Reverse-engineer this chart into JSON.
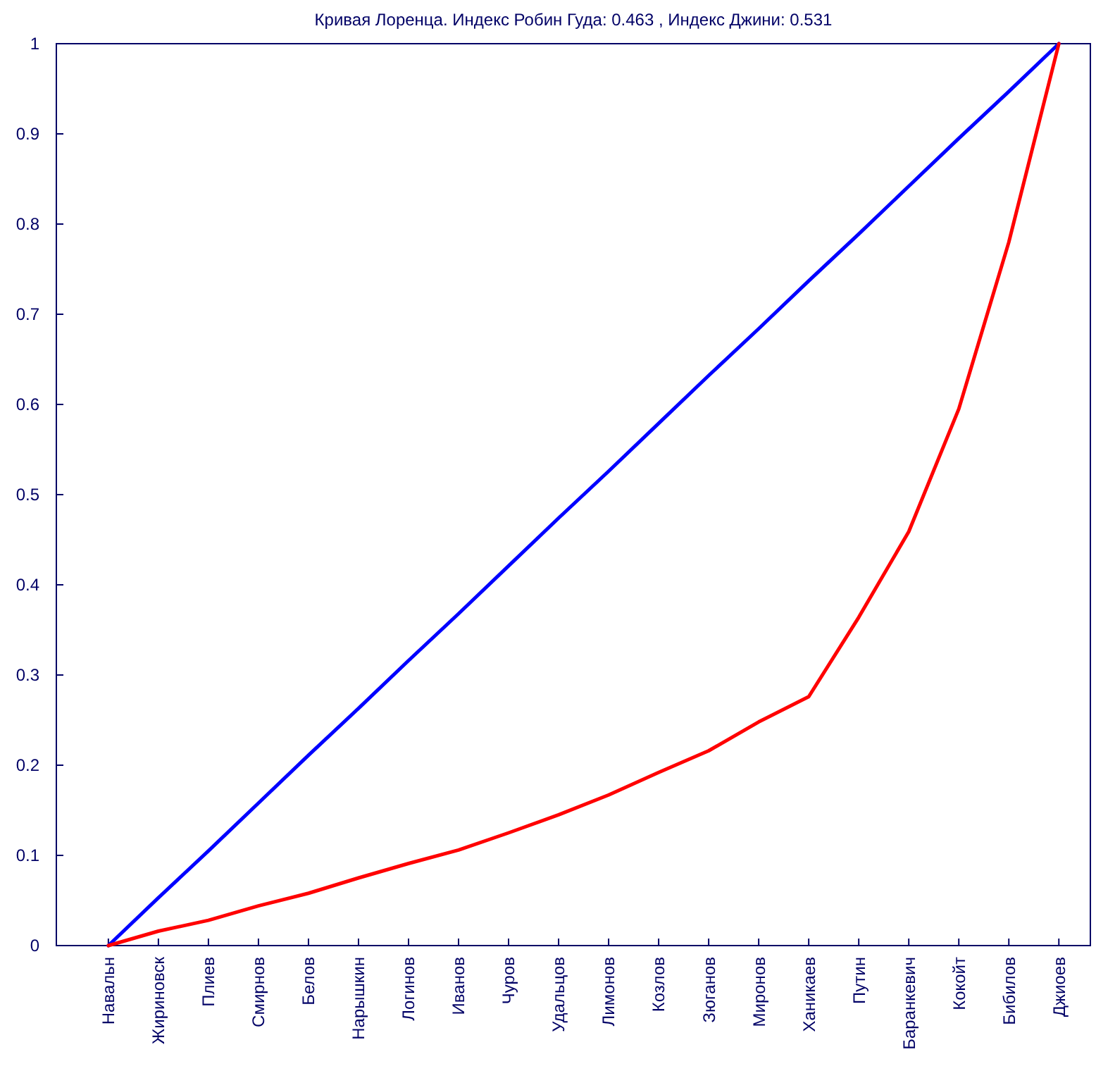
{
  "chart_data": {
    "type": "line",
    "title": "Кривая Лоренца. Индекс Робин Гуда: 0.463 , Индекс Джини: 0.531",
    "categories": [
      "Навальн",
      "Жириновск",
      "Плиев",
      "Смирнов",
      "Белов",
      "Нарышкин",
      "Логинов",
      "Иванов",
      "Чуров",
      "Удальцов",
      "Лимонов",
      "Козлов",
      "Зюганов",
      "Миронов",
      "Ханикаев",
      "Путин",
      "Баранкевич",
      "Кокойт",
      "Бибилов",
      "Джиоев"
    ],
    "series": [
      {
        "color": "#0000ff",
        "values": [
          0,
          0.053,
          0.105,
          0.158,
          0.211,
          0.263,
          0.316,
          0.368,
          0.421,
          0.474,
          0.526,
          0.579,
          0.632,
          0.684,
          0.737,
          0.789,
          0.842,
          0.895,
          0.947,
          1
        ]
      },
      {
        "color": "#ff0000",
        "values": [
          0,
          0.016,
          0.028,
          0.044,
          0.058,
          0.075,
          0.091,
          0.106,
          0.125,
          0.145,
          0.167,
          0.192,
          0.216,
          0.248,
          0.276,
          0.364,
          0.459,
          0.595,
          0.78,
          1
        ]
      }
    ],
    "ylim": [
      0,
      1
    ],
    "yticks": [
      0,
      0.1,
      0.2,
      0.3,
      0.4,
      0.5,
      0.6,
      0.7,
      0.8,
      0.9,
      1
    ],
    "grid": false,
    "marker": "none",
    "line_style": "solid"
  }
}
